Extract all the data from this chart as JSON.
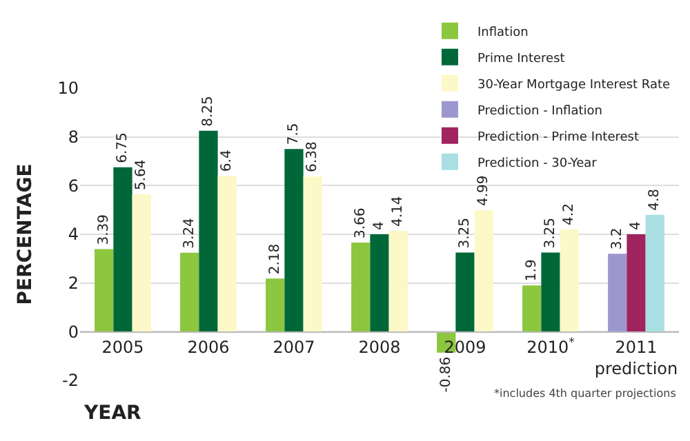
{
  "chart_data": {
    "type": "bar",
    "xlabel": "YEAR",
    "ylabel": "PERCENTAGE",
    "categories": [
      "2005",
      "2006",
      "2007",
      "2008",
      "2009",
      "2010$^{*}$",
      "2011\nprediction"
    ],
    "series": [
      {
        "name": "Inflation",
        "color": "#8dc63f",
        "values": [
          3.39,
          3.24,
          2.18,
          3.66,
          -0.86,
          1.9,
          null
        ]
      },
      {
        "name": "Prime Interest",
        "color": "#006838",
        "values": [
          6.75,
          8.25,
          7.5,
          4,
          3.25,
          3.25,
          null
        ]
      },
      {
        "name": "30-Year Mortgage Interest Rate",
        "color": "#fdf8c8",
        "values": [
          5.64,
          6.4,
          6.38,
          4.14,
          4.99,
          4.2,
          null
        ]
      },
      {
        "name": "Prediction - Inflation",
        "color": "#9c98cf",
        "values": [
          null,
          null,
          null,
          null,
          null,
          null,
          3.2
        ]
      },
      {
        "name": "Prediction - Prime Interest",
        "color": "#a0245e",
        "values": [
          null,
          null,
          null,
          null,
          null,
          null,
          4
        ]
      },
      {
        "name": "Prediction - 30-Year",
        "color": "#a9dfe3",
        "values": [
          null,
          null,
          null,
          null,
          null,
          null,
          4.8
        ]
      }
    ],
    "ylim": [
      -2,
      10
    ],
    "yticks": [
      -2,
      0,
      2,
      4,
      6,
      8,
      10
    ],
    "grid": "y",
    "legend": "top right",
    "data_labels": true,
    "annotations": [
      "*includes 4th quarter projections"
    ]
  }
}
